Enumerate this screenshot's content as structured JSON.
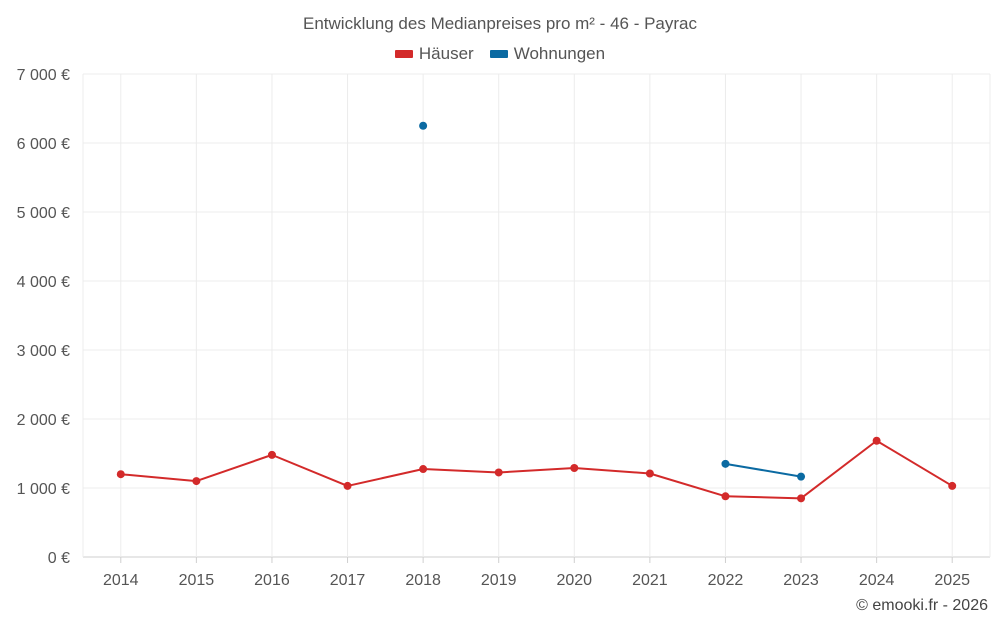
{
  "chart_data": {
    "type": "line",
    "title": "Entwicklung des Medianpreises pro m² - 46 - Payrac",
    "categories": [
      "2014",
      "2015",
      "2016",
      "2017",
      "2018",
      "2019",
      "2020",
      "2021",
      "2022",
      "2023",
      "2024",
      "2025"
    ],
    "y_ticks": [
      "0 €",
      "1 000 €",
      "2 000 €",
      "3 000 €",
      "4 000 €",
      "5 000 €",
      "6 000 €",
      "7 000 €"
    ],
    "ylim": [
      0,
      7000
    ],
    "grid": true,
    "legend_position": "top-center",
    "series": [
      {
        "name": "Häuser",
        "color": "#d32a2a",
        "values": [
          1200,
          1100,
          1480,
          1030,
          1275,
          1225,
          1290,
          1210,
          880,
          850,
          1685,
          1030
        ]
      },
      {
        "name": "Wohnungen",
        "color": "#0b6aa2",
        "values": [
          null,
          null,
          null,
          null,
          6250,
          null,
          null,
          null,
          1350,
          1165,
          null,
          null
        ]
      }
    ]
  },
  "credit": "© emooki.fr - 2026"
}
